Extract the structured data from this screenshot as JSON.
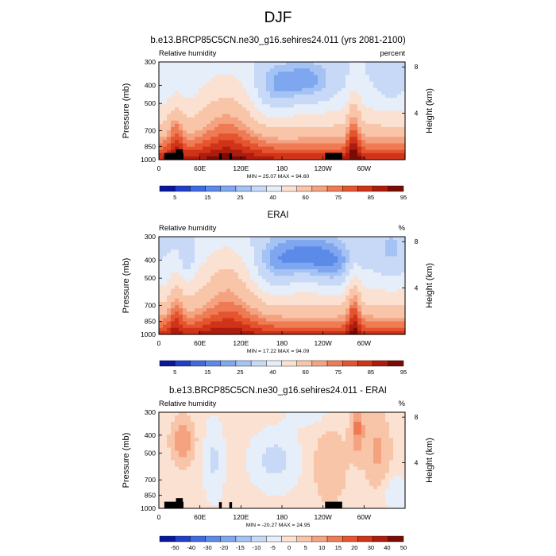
{
  "figure": {
    "title": "DJF"
  },
  "chart_data": [
    {
      "type": "heatmap",
      "title": "b.e13.BRCP85C5CN.ne30_g16.sehires24.011 (yrs 2081-2100)",
      "left_label": "Relative humidity",
      "right_label": "percent",
      "ylabel": "Pressure (mb)",
      "ylabel_right": "Height (km)",
      "x_ticks": [
        "0",
        "60E",
        "120E",
        "180",
        "120W",
        "60W"
      ],
      "x_tick_lon": [
        0,
        60,
        120,
        180,
        240,
        300
      ],
      "xlim": [
        0,
        360
      ],
      "y_ticks": [
        "300",
        "400",
        "500",
        "700",
        "850",
        "1000"
      ],
      "y_tick_p": [
        300,
        400,
        500,
        700,
        850,
        1000
      ],
      "ylim": [
        1000,
        300
      ],
      "y_scale": "log",
      "height_ticks": [
        "8",
        "4"
      ],
      "height_tick_km": [
        8,
        4
      ],
      "stats": "MIN = 25.07  MAX = 94.60",
      "colorbar_labels": [
        "5",
        "15",
        "25",
        "40",
        "60",
        "75",
        "85",
        "95"
      ],
      "colorbar_colors": [
        "#08179c",
        "#1f3fc8",
        "#3f6ae0",
        "#5b8ae8",
        "#7fa7ef",
        "#a5c2f4",
        "#c7d9f7",
        "#e6eef9",
        "#fbe1d2",
        "#f8c5a8",
        "#f4a27f",
        "#ee7b54",
        "#e5542f",
        "#cf3318",
        "#ad1c0c",
        "#7a0c04"
      ],
      "min": 25.07,
      "max": 94.6
    },
    {
      "type": "heatmap",
      "title": "ERAI",
      "left_label": "Relative humidity",
      "right_label": "%",
      "ylabel": "Pressure (mb)",
      "ylabel_right": "Height (km)",
      "x_ticks": [
        "0",
        "60E",
        "120E",
        "180",
        "120W",
        "60W"
      ],
      "x_tick_lon": [
        0,
        60,
        120,
        180,
        240,
        300
      ],
      "xlim": [
        0,
        360
      ],
      "y_ticks": [
        "300",
        "400",
        "500",
        "700",
        "850",
        "1000"
      ],
      "y_tick_p": [
        300,
        400,
        500,
        700,
        850,
        1000
      ],
      "ylim": [
        1000,
        300
      ],
      "y_scale": "log",
      "height_ticks": [
        "8",
        "4"
      ],
      "height_tick_km": [
        8,
        4
      ],
      "stats": "MIN = 17.22  MAX = 94.09",
      "colorbar_labels": [
        "5",
        "15",
        "25",
        "40",
        "60",
        "75",
        "85",
        "95"
      ],
      "colorbar_colors": [
        "#08179c",
        "#1f3fc8",
        "#3f6ae0",
        "#5b8ae8",
        "#7fa7ef",
        "#a5c2f4",
        "#c7d9f7",
        "#e6eef9",
        "#fbe1d2",
        "#f8c5a8",
        "#f4a27f",
        "#ee7b54",
        "#e5542f",
        "#cf3318",
        "#ad1c0c",
        "#7a0c04"
      ],
      "min": 17.22,
      "max": 94.09
    },
    {
      "type": "heatmap",
      "title": "b.e13.BRCP85C5CN.ne30_g16.sehires24.011 - ERAI",
      "left_label": "Relative humidity",
      "right_label": "%",
      "ylabel": "Pressure (mb)",
      "ylabel_right": "Height (km)",
      "x_ticks": [
        "0",
        "60E",
        "120E",
        "180",
        "120W",
        "60W"
      ],
      "x_tick_lon": [
        0,
        60,
        120,
        180,
        240,
        300
      ],
      "xlim": [
        0,
        360
      ],
      "y_ticks": [
        "300",
        "400",
        "500",
        "700",
        "850",
        "1000"
      ],
      "y_tick_p": [
        300,
        400,
        500,
        700,
        850,
        1000
      ],
      "ylim": [
        1000,
        300
      ],
      "y_scale": "log",
      "height_ticks": [
        "8",
        "4"
      ],
      "height_tick_km": [
        8,
        4
      ],
      "stats": "MIN = -20.27  MAX = 24.95",
      "colorbar_labels": [
        "-50",
        "-40",
        "-30",
        "-20",
        "-15",
        "-10",
        "-5",
        "0",
        "5",
        "10",
        "15",
        "20",
        "30",
        "40",
        "50"
      ],
      "colorbar_colors": [
        "#08179c",
        "#1f3fc8",
        "#3f6ae0",
        "#5b8ae8",
        "#7fa7ef",
        "#a5c2f4",
        "#c7d9f7",
        "#e6eef9",
        "#fbe1d2",
        "#f8c5a8",
        "#f4a27f",
        "#ee7b54",
        "#e5542f",
        "#cf3318",
        "#ad1c0c",
        "#7a0c04"
      ],
      "min": -20.27,
      "max": 24.95
    }
  ]
}
